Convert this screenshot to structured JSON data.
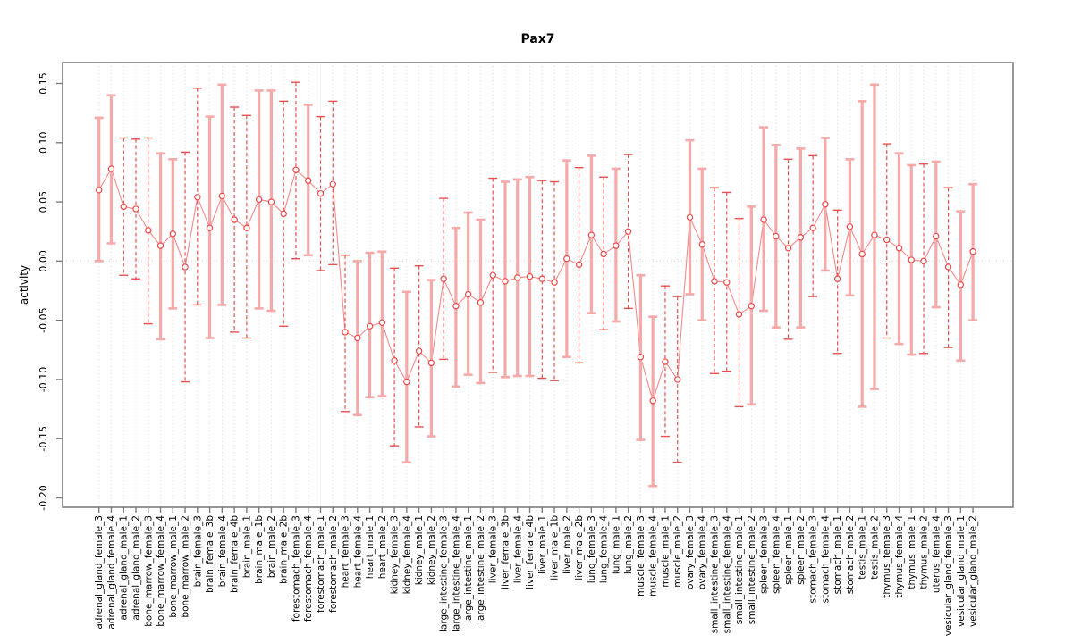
{
  "chart_data": {
    "type": "scatter",
    "title": "Pax7",
    "ylabel": "activity",
    "xlabel": "",
    "ylim": [
      -0.2,
      0.15
    ],
    "yticks": [
      "-0.20",
      "-0.15",
      "-0.10",
      "-0.05",
      "0.00",
      "0.05",
      "0.10",
      "0.15"
    ],
    "grid": "vertical dotted gridline at every category; dotted horizontal line at y=0",
    "legend_position": "none",
    "series_name": "activity point estimate with confidence interval",
    "categories": [
      "adrenal_gland_female_3",
      "adrenal_gland_female_4",
      "adrenal_gland_male_1",
      "adrenal_gland_male_2",
      "bone_marrow_female_3",
      "bone_marrow_female_4",
      "bone_marrow_male_1",
      "bone_marrow_male_2",
      "brain_female_3",
      "brain_female_3b",
      "brain_female_4",
      "brain_female_4b",
      "brain_male_1",
      "brain_male_1b",
      "brain_male_2",
      "brain_male_2b",
      "forestomach_female_3",
      "forestomach_female_4",
      "forestomach_male_1",
      "forestomach_male_2",
      "heart_female_3",
      "heart_female_4",
      "heart_male_1",
      "heart_male_2",
      "kidney_female_3",
      "kidney_female_4",
      "kidney_male_1",
      "kidney_male_2",
      "large_intestine_female_3",
      "large_intestine_female_4",
      "large_intestine_male_1",
      "large_intestine_male_2",
      "liver_female_3",
      "liver_female_3b",
      "liver_female_4",
      "liver_female_4b",
      "liver_male_1",
      "liver_male_1b",
      "liver_male_2",
      "liver_male_2b",
      "lung_female_3",
      "lung_female_4",
      "lung_male_1",
      "lung_male_2",
      "muscle_female_3",
      "muscle_female_4",
      "muscle_male_1",
      "muscle_male_2",
      "ovary_female_3",
      "ovary_female_4",
      "small_intestine_female_3",
      "small_intestine_female_4",
      "small_intestine_male_1",
      "small_intestine_male_2",
      "spleen_female_3",
      "spleen_female_4",
      "spleen_male_1",
      "spleen_male_2",
      "stomach_female_3",
      "stomach_female_4",
      "stomach_male_1",
      "stomach_male_2",
      "testis_male_1",
      "testis_male_2",
      "thymus_female_3",
      "thymus_female_4",
      "thymus_male_1",
      "thymus_male_2",
      "uterus_female_4",
      "vesicular_gland_female_3",
      "vesicular_gland_male_1",
      "vesicular_gland_male_2"
    ],
    "values": [
      0.06,
      0.078,
      0.046,
      0.044,
      0.026,
      0.013,
      0.023,
      -0.005,
      0.054,
      0.028,
      0.055,
      0.035,
      0.028,
      0.052,
      0.05,
      0.04,
      0.077,
      0.068,
      0.057,
      0.065,
      -0.06,
      -0.065,
      -0.055,
      -0.052,
      -0.084,
      -0.102,
      -0.076,
      -0.086,
      -0.015,
      -0.038,
      -0.028,
      -0.035,
      -0.012,
      -0.017,
      -0.014,
      -0.013,
      -0.015,
      -0.018,
      0.002,
      -0.003,
      0.022,
      0.006,
      0.013,
      0.025,
      -0.081,
      -0.118,
      -0.085,
      -0.1,
      0.037,
      0.014,
      -0.017,
      -0.018,
      -0.045,
      -0.038,
      0.035,
      0.021,
      0.011,
      0.02,
      0.028,
      0.048,
      -0.015,
      0.029,
      0.006,
      0.022,
      0.018,
      0.011,
      0.001,
      0.0,
      0.021,
      -0.005,
      -0.02,
      0.008
    ],
    "ci_low": [
      0.0,
      0.015,
      -0.012,
      -0.015,
      -0.053,
      -0.066,
      -0.04,
      -0.102,
      -0.037,
      -0.065,
      -0.037,
      -0.06,
      -0.065,
      -0.04,
      -0.042,
      -0.055,
      0.002,
      0.005,
      -0.008,
      -0.003,
      -0.127,
      -0.13,
      -0.115,
      -0.114,
      -0.156,
      -0.17,
      -0.14,
      -0.148,
      -0.083,
      -0.106,
      -0.096,
      -0.103,
      -0.094,
      -0.098,
      -0.097,
      -0.097,
      -0.099,
      -0.101,
      -0.081,
      -0.086,
      -0.044,
      -0.058,
      -0.051,
      -0.04,
      -0.151,
      -0.19,
      -0.148,
      -0.17,
      -0.028,
      -0.05,
      -0.095,
      -0.093,
      -0.123,
      -0.121,
      -0.042,
      -0.056,
      -0.066,
      -0.056,
      -0.03,
      -0.008,
      -0.078,
      -0.029,
      -0.123,
      -0.108,
      -0.065,
      -0.07,
      -0.079,
      -0.078,
      -0.039,
      -0.073,
      -0.084,
      -0.05
    ],
    "ci_high": [
      0.121,
      0.14,
      0.104,
      0.103,
      0.104,
      0.091,
      0.086,
      0.092,
      0.146,
      0.122,
      0.149,
      0.13,
      0.123,
      0.144,
      0.144,
      0.135,
      0.151,
      0.132,
      0.122,
      0.135,
      0.005,
      0.0,
      0.007,
      0.008,
      -0.006,
      -0.026,
      -0.004,
      -0.016,
      0.053,
      0.028,
      0.041,
      0.035,
      0.07,
      0.067,
      0.069,
      0.071,
      0.068,
      0.067,
      0.085,
      0.079,
      0.089,
      0.071,
      0.078,
      0.09,
      -0.012,
      -0.047,
      -0.021,
      -0.03,
      0.102,
      0.078,
      0.062,
      0.058,
      0.036,
      0.046,
      0.113,
      0.098,
      0.086,
      0.095,
      0.089,
      0.104,
      0.043,
      0.086,
      0.135,
      0.149,
      0.099,
      0.091,
      0.081,
      0.082,
      0.084,
      0.062,
      0.042,
      0.065
    ],
    "bar_styles": [
      "s",
      "s",
      "d",
      "d",
      "d",
      "s",
      "s",
      "d",
      "d",
      "s",
      "s",
      "d",
      "d",
      "s",
      "s",
      "d",
      "d",
      "s",
      "d",
      "d",
      "d",
      "s",
      "s",
      "s",
      "d",
      "s",
      "d",
      "s",
      "d",
      "s",
      "s",
      "s",
      "d",
      "s",
      "s",
      "s",
      "d",
      "d",
      "s",
      "d",
      "s",
      "d",
      "s",
      "d",
      "s",
      "s",
      "d",
      "d",
      "s",
      "s",
      "d",
      "d",
      "d",
      "s",
      "s",
      "s",
      "d",
      "s",
      "d",
      "s",
      "d",
      "s",
      "s",
      "s",
      "d",
      "s",
      "s",
      "d",
      "s",
      "d",
      "s",
      "s"
    ],
    "colors": {
      "point": "#f04848",
      "connector_line": "#f58a8a",
      "bar_solid": "#f5a9a9",
      "bar_dashed": "#e85050",
      "gridline": "#dcdcdc",
      "zero_line": "#d6d6d6",
      "axis": "#7d7d7d",
      "text": "#000000"
    }
  }
}
